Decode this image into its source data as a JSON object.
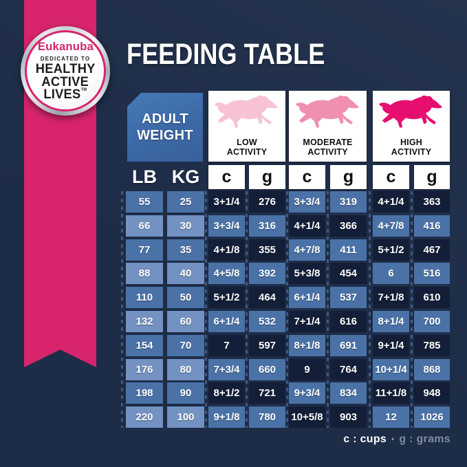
{
  "title": "FEEDING TABLE",
  "badge": {
    "brand": "Eukanuba",
    "dedicated": "DEDICATED TO",
    "line1": "HEALTHY",
    "line2": "ACTIVE",
    "line3": "LIVES",
    "tm": "TM"
  },
  "corner": {
    "line1": "ADULT",
    "line2": "WEIGHT"
  },
  "weight_headers": {
    "lb": "LB",
    "kg": "KG"
  },
  "activities": [
    {
      "line1": "LOW",
      "line2": "ACTIVITY",
      "dog_color": "#f7c3d4"
    },
    {
      "line1": "MODERATE",
      "line2": "ACTIVITY",
      "dog_color": "#ef8fb1"
    },
    {
      "line1": "HIGH",
      "line2": "ACTIVITY",
      "dog_color": "#e60e6e"
    }
  ],
  "unit_headers": [
    "c",
    "g",
    "c",
    "g",
    "c",
    "g"
  ],
  "legend": {
    "cups": "c : cups",
    "separator": "•",
    "grams": "g : grams"
  },
  "colors": {
    "background": "#1d2c47",
    "ribbon_pink": "#d7246d",
    "cell_dark": "#131f38",
    "cell_blue": "#4a72a7",
    "cell_light_blue": "#7392c2",
    "header_blue": "#3c69a6",
    "legend_gray": "#7f8b9e"
  },
  "chart_data": {
    "type": "table",
    "title": "FEEDING TABLE",
    "columns": [
      "Adult weight (LB)",
      "Adult weight (KG)",
      "Low activity (c)",
      "Low activity (g)",
      "Moderate activity (c)",
      "Moderate activity (g)",
      "High activity (c)",
      "High activity (g)"
    ],
    "units": {
      "c": "cups",
      "g": "grams"
    },
    "rows": [
      [
        "55",
        "25",
        "3+1/4",
        "276",
        "3+3/4",
        "319",
        "4+1/4",
        "363"
      ],
      [
        "66",
        "30",
        "3+3/4",
        "316",
        "4+1/4",
        "366",
        "4+7/8",
        "416"
      ],
      [
        "77",
        "35",
        "4+1/8",
        "355",
        "4+7/8",
        "411",
        "5+1/2",
        "467"
      ],
      [
        "88",
        "40",
        "4+5/8",
        "392",
        "5+3/8",
        "454",
        "6",
        "516"
      ],
      [
        "110",
        "50",
        "5+1/2",
        "464",
        "6+1/4",
        "537",
        "7+1/8",
        "610"
      ],
      [
        "132",
        "60",
        "6+1/4",
        "532",
        "7+1/4",
        "616",
        "8+1/4",
        "700"
      ],
      [
        "154",
        "70",
        "7",
        "597",
        "8+1/8",
        "691",
        "9+1/4",
        "785"
      ],
      [
        "176",
        "80",
        "7+3/4",
        "660",
        "9",
        "764",
        "10+1/4",
        "868"
      ],
      [
        "198",
        "90",
        "8+1/2",
        "721",
        "9+3/4",
        "834",
        "11+1/8",
        "948"
      ],
      [
        "220",
        "100",
        "9+1/8",
        "780",
        "10+5/8",
        "903",
        "12",
        "1026"
      ]
    ]
  }
}
